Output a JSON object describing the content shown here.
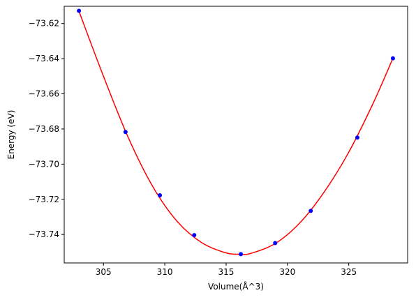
{
  "chart_data": {
    "type": "scatter",
    "title": "",
    "xlabel": "Volume(Å^3)",
    "ylabel": "Energy (eV)",
    "xlim": [
      301.8,
      329.8
    ],
    "ylim": [
      -73.7562,
      -73.6102
    ],
    "xticks": [
      305,
      310,
      315,
      320,
      325
    ],
    "xtick_labels": [
      "305",
      "310",
      "315",
      "320",
      "325"
    ],
    "yticks": [
      -73.62,
      -73.64,
      -73.66,
      -73.68,
      -73.7,
      -73.72,
      -73.74
    ],
    "ytick_labels": [
      "−73.62",
      "−73.64",
      "−73.66",
      "−73.68",
      "−73.70",
      "−73.72",
      "−73.74"
    ],
    "grid": false,
    "series": [
      {
        "kind": "scatter",
        "color": "#0000ff",
        "x": [
          303.0,
          306.8,
          309.6,
          312.4,
          316.2,
          319.0,
          321.9,
          325.7,
          328.6
        ],
        "y": [
          -73.6128,
          -73.6817,
          -73.7177,
          -73.7404,
          -73.7512,
          -73.7449,
          -73.7266,
          -73.6849,
          -73.6398
        ]
      },
      {
        "kind": "line",
        "color": "#ff0000",
        "x": [
          303.0,
          305.0,
          307.0,
          309.0,
          311.0,
          313.0,
          315.0,
          316.2,
          317.0,
          319.0,
          321.0,
          323.0,
          325.0,
          327.0,
          328.6
        ],
        "y": [
          -73.613,
          -73.65,
          -73.6845,
          -73.7125,
          -73.7325,
          -73.7446,
          -73.7505,
          -73.7512,
          -73.7508,
          -73.7452,
          -73.7335,
          -73.7158,
          -73.6932,
          -73.6652,
          -73.6398
        ]
      }
    ]
  }
}
